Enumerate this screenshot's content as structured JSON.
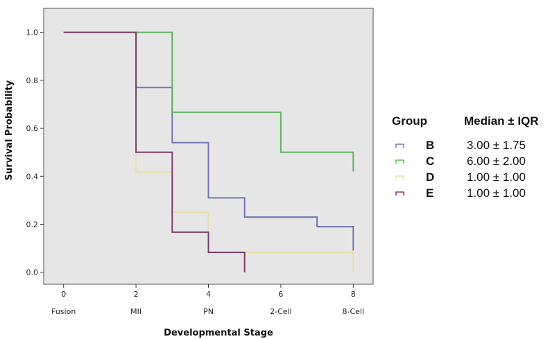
{
  "chart_data": {
    "type": "line",
    "subtype": "step",
    "title": "",
    "xlabel": "Developmental Stage",
    "ylabel": "Survival Probability",
    "xlim": [
      -0.55,
      8.55
    ],
    "ylim": [
      -0.05,
      1.1
    ],
    "x_ticks": [
      0,
      2,
      4,
      6,
      8
    ],
    "x_category_labels": [
      {
        "x": 0,
        "label": "Fusion"
      },
      {
        "x": 2,
        "label": "MII"
      },
      {
        "x": 4,
        "label": "PN"
      },
      {
        "x": 6,
        "label": "2-Cell"
      },
      {
        "x": 8,
        "label": "8-Cell"
      }
    ],
    "y_ticks": [
      "0.0",
      "0.2",
      "0.4",
      "0.6",
      "0.8",
      "1.0"
    ],
    "grid": false,
    "background": "#e6e6e6",
    "legend": {
      "placement": "right",
      "group_header": "Group",
      "stat_header": "Median ± IQR"
    },
    "series": [
      {
        "name": "B",
        "stat": "3.00 ± 1.75",
        "color": "#6f77b3",
        "steps": [
          [
            0,
            1.0
          ],
          [
            2,
            0.77
          ],
          [
            3,
            0.54
          ],
          [
            4,
            0.31
          ],
          [
            5,
            0.23
          ],
          [
            7,
            0.19
          ],
          [
            8,
            0.09
          ]
        ]
      },
      {
        "name": "C",
        "stat": "6.00 ± 2.00",
        "color": "#5db35d",
        "steps": [
          [
            0,
            1.0
          ],
          [
            3,
            0.667
          ],
          [
            6,
            0.5
          ],
          [
            8,
            0.42
          ]
        ]
      },
      {
        "name": "D",
        "stat": "1.00 ± 1.00",
        "color": "#e8dfa6",
        "steps": [
          [
            0,
            1.0
          ],
          [
            2,
            0.417
          ],
          [
            3,
            0.25
          ],
          [
            4,
            0.083
          ],
          [
            8,
            0.0
          ]
        ]
      },
      {
        "name": "E",
        "stat": "1.00 ± 1.00",
        "color": "#7a3d6b",
        "steps": [
          [
            0,
            1.0
          ],
          [
            2,
            0.5
          ],
          [
            3,
            0.167
          ],
          [
            4,
            0.083
          ],
          [
            5,
            0.0
          ]
        ]
      }
    ]
  }
}
